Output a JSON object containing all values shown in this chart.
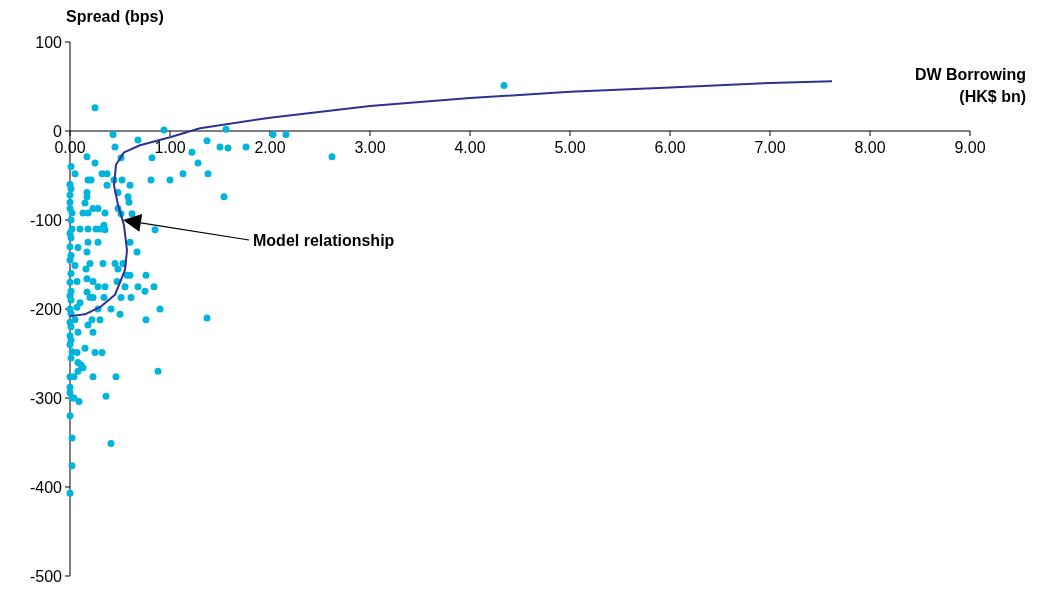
{
  "chart_data": {
    "type": "scatter",
    "xlabel": "DW Borrowing (HK$ bn)",
    "ylabel": "Spread (bps)",
    "xlim": [
      0,
      9
    ],
    "xticks": [
      {
        "value": 0,
        "label": "0.00"
      },
      {
        "value": 1,
        "label": "1.00"
      },
      {
        "value": 2,
        "label": "2.00"
      },
      {
        "value": 3,
        "label": "3.00"
      },
      {
        "value": 4,
        "label": "4.00"
      },
      {
        "value": 5,
        "label": "5.00"
      },
      {
        "value": 6,
        "label": "6.00"
      },
      {
        "value": 7,
        "label": "7.00"
      },
      {
        "value": 8,
        "label": "8.00"
      },
      {
        "value": 9,
        "label": "9.00"
      }
    ],
    "ylim": [
      -500,
      100
    ],
    "yticks": [
      -500,
      -400,
      -300,
      -200,
      -100,
      0,
      100
    ],
    "marker": "circle",
    "annotations": [
      "Model relationship"
    ],
    "series": [
      {
        "color": "#00b4dc",
        "x": [
          0.25,
          4.34,
          0.94,
          1.56,
          2.03,
          2.16,
          2.62,
          1.37,
          1.5,
          1.58,
          1.76,
          0.43,
          0.45,
          0.68,
          0.51,
          0.82,
          0.25,
          0.17,
          0.05,
          0.32,
          0.37,
          0.18,
          0.21,
          0.37,
          0.44,
          0.52,
          0.6,
          0.81,
          1.0,
          1.13,
          1.38,
          1.22,
          1.28,
          1.54,
          0,
          0.17,
          0.17,
          0.48,
          0.58,
          0.59,
          0.15,
          0,
          0.02,
          0.13,
          0.18,
          0.23,
          0.28,
          0.35,
          0.48,
          0.51,
          0.62,
          0.34,
          0.85,
          0.02,
          0.1,
          0.18,
          0.26,
          0.3,
          0.35,
          0.18,
          0.28,
          0.08,
          0.17,
          0.6,
          0.67,
          0.2,
          0.33,
          0.45,
          0.53,
          0.05,
          0.16,
          0.48,
          0.57,
          0.6,
          0.76,
          0.07,
          0.17,
          0.23,
          0.35,
          0.28,
          0.47,
          0.55,
          0.68,
          0.75,
          0.84,
          0.17,
          0.2,
          0.23,
          0.34,
          0.51,
          0.61,
          0.1,
          0.07,
          0.28,
          0.41,
          0.5,
          0.9,
          1.37,
          0.05,
          0.22,
          0.3,
          0.76,
          0.18,
          0.08,
          0.23,
          0.02,
          0.07,
          0.15,
          0.25,
          0.32,
          0.08,
          0.11,
          0.13,
          0.08,
          0.88,
          0,
          0.04,
          0.23,
          0.46,
          0,
          0,
          0.02,
          0.04,
          0.09,
          0.36,
          0,
          0.02,
          0.41,
          0.02,
          0,
          0.01,
          0,
          0.01,
          0,
          0.01,
          0,
          0.01,
          0,
          0.01,
          0,
          0.01,
          0,
          0.01,
          0,
          0.01,
          0,
          0.01,
          0,
          0.01,
          0,
          0.01,
          0,
          0.01
        ],
        "values": [
          26,
          51,
          1,
          2,
          -4,
          -4,
          -29,
          -11,
          -18,
          -19,
          -18,
          -4,
          -18,
          -10,
          -30,
          -30,
          -36,
          -29,
          -48,
          -48,
          -48,
          -55,
          -55,
          -61,
          -55,
          -55,
          -61,
          -55,
          -55,
          -48,
          -48,
          -24,
          -36,
          -74,
          -72,
          -69,
          -74,
          -69,
          -74,
          -80,
          -81,
          -87,
          -92,
          -92,
          -92,
          -87,
          -87,
          -92,
          -87,
          -93,
          -93,
          -106,
          -111,
          -110,
          -110,
          -110,
          -110,
          -110,
          -111,
          -125,
          -125,
          -131,
          -136,
          -125,
          -136,
          -149,
          -149,
          -149,
          -149,
          -151,
          -155,
          -155,
          -162,
          -162,
          -162,
          -169,
          -166,
          -169,
          -175,
          -175,
          -169,
          -175,
          -175,
          -180,
          -175,
          -181,
          -187,
          -187,
          -187,
          -187,
          -187,
          -193,
          -198,
          -200,
          -200,
          -206,
          -200,
          -210,
          -212,
          -212,
          -212,
          -212,
          -218,
          -226,
          -226,
          -248,
          -249,
          -244,
          -249,
          -249,
          -260,
          -263,
          -266,
          -270,
          -270,
          -276,
          -276,
          -276,
          -276,
          -288,
          -294,
          -300,
          -300,
          -304,
          -298,
          -320,
          -345,
          -351,
          -376,
          -407,
          -40,
          -60,
          -65,
          -80,
          -100,
          -115,
          -120,
          -130,
          -140,
          -145,
          -160,
          -170,
          -180,
          -185,
          -190,
          -200,
          -205,
          -215,
          -220,
          -230,
          -235,
          -240,
          -255
        ]
      },
      {
        "type": "line",
        "color": "#2e3192",
        "marker": "none",
        "x": [
          0,
          0.15,
          0.3,
          0.45,
          0.55,
          0.57,
          0.54,
          0.48,
          0.44,
          0.46,
          0.54,
          0.7,
          1.0,
          1.3,
          2.0,
          3.0,
          4.0,
          5.0,
          6.0,
          7.0,
          7.62
        ],
        "values": [
          -208,
          -206,
          -198,
          -184,
          -156,
          -134,
          -106,
          -83,
          -61,
          -38,
          -24,
          -16,
          -7,
          3,
          15,
          28,
          37,
          44,
          49,
          54,
          56
        ]
      }
    ]
  }
}
